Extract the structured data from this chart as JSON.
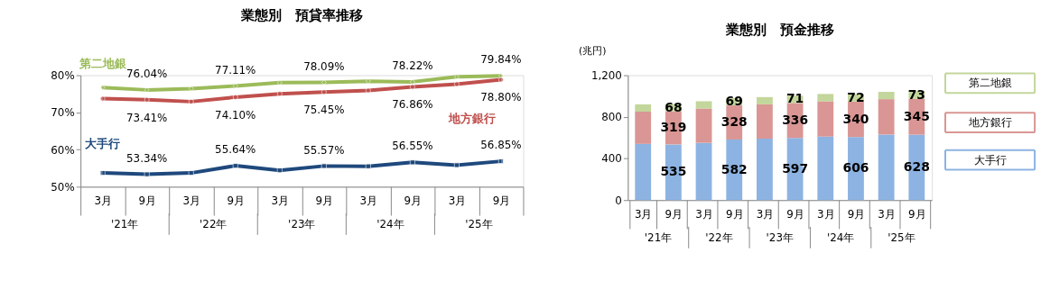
{
  "chart_data": [
    {
      "type": "line",
      "title": "業態別　預貸率推移",
      "categories": [
        "3月",
        "9月",
        "3月",
        "9月",
        "3月",
        "9月",
        "3月",
        "9月",
        "3月",
        "9月"
      ],
      "annotations": [
        "'21年",
        "'22年",
        "'23年",
        "'24年",
        "'25年"
      ],
      "ylim": [
        50,
        80
      ],
      "yticks": [
        {
          "value": 50,
          "label": "50%"
        },
        {
          "value": 60,
          "label": "60%"
        },
        {
          "value": 70,
          "label": "70%"
        },
        {
          "value": 80,
          "label": "80%"
        }
      ],
      "legend": false,
      "grid": false,
      "series": [
        {
          "name": "第二地銀",
          "color": "#9bbb59",
          "marker": "diamond",
          "values": [
            76.7,
            76.04,
            76.4,
            77.11,
            78.0,
            78.09,
            78.4,
            78.22,
            79.6,
            79.84
          ],
          "value_labels": [
            null,
            "76.04%",
            null,
            "77.11%",
            null,
            "78.09%",
            null,
            "78.22%",
            null,
            "79.84%"
          ]
        },
        {
          "name": "地方銀行",
          "color": "#c0504d",
          "marker": "circle",
          "values": [
            73.7,
            73.41,
            72.9,
            74.1,
            75.0,
            75.45,
            75.9,
            76.86,
            77.6,
            78.8
          ],
          "value_labels": [
            null,
            "73.41%",
            null,
            "74.10%",
            null,
            "75.45%",
            null,
            "76.86%",
            null,
            "78.80%"
          ]
        },
        {
          "name": "大手行",
          "color": "#1f497d",
          "marker": "square",
          "values": [
            53.7,
            53.34,
            53.7,
            55.64,
            54.4,
            55.57,
            55.5,
            56.55,
            55.8,
            56.85
          ],
          "value_labels": [
            null,
            "53.34%",
            null,
            "55.64%",
            null,
            "55.57%",
            null,
            "56.55%",
            null,
            "56.85%"
          ]
        }
      ]
    },
    {
      "type": "bar",
      "stacked": true,
      "title": "業態別　預金推移",
      "ylabel": "(兆円)",
      "categories": [
        "3月",
        "9月",
        "3月",
        "9月",
        "3月",
        "9月",
        "3月",
        "9月",
        "3月",
        "9月"
      ],
      "annotations": [
        "'21年",
        "'22年",
        "'23年",
        "'24年",
        "'25年"
      ],
      "ylim": [
        0,
        1200
      ],
      "yticks": [
        0,
        400,
        800,
        {
          "value": 1200,
          "label": "1,200"
        }
      ],
      "legend": "right",
      "grid": false,
      "series": [
        {
          "name": "大手行",
          "color": "#8db3e2",
          "values": [
            540,
            535,
            550,
            582,
            590,
            597,
            610,
            606,
            630,
            628
          ],
          "value_labels": [
            null,
            "535",
            null,
            "582",
            null,
            "597",
            null,
            "606",
            null,
            "628"
          ]
        },
        {
          "name": "地方銀行",
          "color": "#d99694",
          "values": [
            310,
            319,
            330,
            328,
            330,
            336,
            340,
            340,
            340,
            345
          ],
          "value_labels": [
            null,
            "319",
            null,
            "328",
            null,
            "336",
            null,
            "340",
            null,
            "345"
          ]
        },
        {
          "name": "第二地銀",
          "color": "#c3d69b",
          "values": [
            70,
            68,
            70,
            69,
            70,
            71,
            70,
            72,
            70,
            73
          ],
          "value_labels": [
            null,
            "68",
            null,
            "69",
            null,
            "71",
            null,
            "72",
            null,
            "73"
          ]
        }
      ]
    }
  ]
}
